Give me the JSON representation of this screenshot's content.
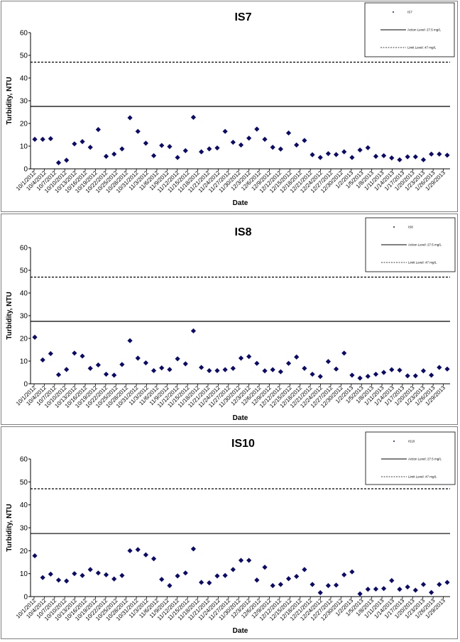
{
  "chart_data": [
    {
      "type": "scatter",
      "title": "IS7",
      "xlabel": "Date",
      "ylabel": "Turbidity, NTU",
      "ylim": [
        0,
        60
      ],
      "yticks": [
        "0",
        "10",
        "20",
        "30",
        "40",
        "50",
        "60"
      ],
      "xtick_labels": [
        "10/1/2012",
        "10/4/2012",
        "10/7/2012",
        "10/10/2012",
        "10/13/2012",
        "10/16/2012",
        "10/19/2012",
        "10/22/2012",
        "10/25/2012",
        "10/28/2012",
        "10/31/2012",
        "11/3/2012",
        "11/6/2012",
        "11/9/2012",
        "11/12/2012",
        "11/15/2012",
        "11/18/2012",
        "11/21/2012",
        "11/24/2012",
        "11/27/2012",
        "11/30/2012",
        "12/3/2012",
        "12/6/2012",
        "12/9/2012",
        "12/12/2012",
        "12/15/2012",
        "12/18/2012",
        "12/21/2012",
        "12/24/2012",
        "12/27/2012",
        "12/30/2012",
        "1/2/2013",
        "1/5/2013",
        "1/8/2013",
        "1/11/2013",
        "1/14/2013",
        "1/17/2013",
        "1/20/2013",
        "1/23/2013",
        "1/26/2013",
        "1/29/2013"
      ],
      "series": [
        {
          "name": "IS7",
          "values": [
            13,
            13,
            13.3,
            2.7,
            3.8,
            11,
            12,
            9.5,
            17.3,
            5.5,
            6.5,
            8.8,
            22.5,
            16.5,
            11.3,
            5.8,
            10.3,
            9.8,
            5,
            8,
            22.7,
            7.5,
            8.8,
            9.2,
            16.5,
            11.7,
            10.5,
            13.5,
            17.5,
            13,
            9.5,
            8.7,
            15.8,
            10.5,
            12.5,
            6.2,
            5,
            6.7,
            6.3,
            7.5,
            5,
            8.3,
            9.3,
            5.5,
            5.8,
            4.8,
            4,
            5.3,
            5.3,
            4,
            6.5,
            6.5,
            6
          ]
        }
      ],
      "reference_lines": [
        {
          "name": "Action Level: 27.5 mg/L",
          "value": 27.5,
          "style": "solid"
        },
        {
          "name": "Limit Level: 47 mg/L",
          "value": 47,
          "style": "dashed"
        }
      ],
      "legend": {
        "position": "top-right",
        "items": [
          "IS7",
          "Action Level: 27.5 mg/L",
          "Limit Level: 47 mg/L"
        ]
      }
    },
    {
      "type": "scatter",
      "title": "IS8",
      "xlabel": "Date",
      "ylabel": "Turbidity, NTU",
      "ylim": [
        0,
        60
      ],
      "yticks": [
        "0",
        "10",
        "20",
        "30",
        "40",
        "50",
        "60"
      ],
      "xtick_labels": [
        "10/1/2012",
        "10/4/2012",
        "10/7/2012",
        "10/10/2012",
        "10/13/2012",
        "10/16/2012",
        "10/19/2012",
        "10/22/2012",
        "10/25/2012",
        "10/28/2012",
        "10/31/2012",
        "11/3/2012",
        "11/6/2012",
        "11/9/2012",
        "11/12/2012",
        "11/15/2012",
        "11/18/2012",
        "11/21/2012",
        "11/24/2012",
        "11/27/2012",
        "11/30/2012",
        "12/3/2012",
        "12/6/2012",
        "12/9/2012",
        "12/12/2012",
        "12/15/2012",
        "12/18/2012",
        "12/21/2012",
        "12/24/2012",
        "12/27/2012",
        "12/30/2012",
        "1/2/2013",
        "1/5/2013",
        "1/8/2013",
        "1/11/2013",
        "1/14/2013",
        "1/17/2013",
        "1/20/2013",
        "1/23/2013",
        "1/26/2013",
        "1/29/2013"
      ],
      "series": [
        {
          "name": "IS8",
          "values": [
            20.5,
            10.5,
            13.3,
            4,
            6.3,
            13.5,
            12.2,
            6.8,
            8.3,
            4.2,
            3.8,
            8.5,
            19,
            11.3,
            9.2,
            5.8,
            7,
            6.3,
            11,
            8.8,
            23.3,
            7.2,
            5.8,
            5.8,
            6.2,
            6.8,
            11.3,
            12,
            9,
            5.7,
            6.2,
            5.3,
            9,
            11.8,
            6.8,
            4.2,
            3.2,
            9.8,
            6.5,
            13.5,
            3.8,
            2.5,
            3.3,
            4.2,
            5,
            6.2,
            6,
            3.5,
            3.5,
            5.7,
            3.8,
            7.2,
            6.5
          ]
        }
      ],
      "reference_lines": [
        {
          "name": "Action Level: 27.5 mg/L",
          "value": 27.5,
          "style": "solid"
        },
        {
          "name": "Limit Level: 47 mg/L",
          "value": 47,
          "style": "dashed"
        }
      ],
      "legend": {
        "position": "top-right",
        "items": [
          "IS8",
          "Action Level: 27.5 mg/L",
          "Limit Level: 47 mg/L"
        ]
      }
    },
    {
      "type": "scatter",
      "title": "IS10",
      "xlabel": "Date",
      "ylabel": "Turbidity, NTU",
      "ylim": [
        0,
        60
      ],
      "yticks": [
        "0",
        "10",
        "20",
        "30",
        "40",
        "50",
        "60"
      ],
      "xtick_labels": [
        "10/1/2012",
        "10/4/2012",
        "10/7/2012",
        "10/10/2012",
        "10/13/2012",
        "10/16/2012",
        "10/19/2012",
        "10/22/2012",
        "10/25/2012",
        "10/28/2012",
        "10/31/2012",
        "11/3/2012",
        "11/6/2012",
        "11/9/2012",
        "11/12/2012",
        "11/15/2012",
        "11/18/2012",
        "11/21/2012",
        "11/24/2012",
        "11/27/2012",
        "11/30/2012",
        "12/3/2012",
        "12/6/2012",
        "12/9/2012",
        "12/12/2012",
        "12/15/2012",
        "12/18/2012",
        "12/21/2012",
        "12/24/2012",
        "12/27/2012",
        "12/30/2012",
        "1/2/2013",
        "1/5/2013",
        "1/8/2013",
        "1/11/2013",
        "1/14/2013",
        "1/17/2013",
        "1/20/2013",
        "1/23/2013",
        "1/26/2013",
        "1/29/2013"
      ],
      "series": [
        {
          "name": "IS10",
          "values": [
            17.8,
            8.3,
            9.8,
            7.2,
            6.8,
            10,
            9.2,
            11.8,
            10.3,
            9.5,
            7.7,
            9.2,
            20,
            20.5,
            18.2,
            16.5,
            7.5,
            4.8,
            9,
            10.3,
            20.8,
            6.2,
            6,
            9,
            9.2,
            11.8,
            15.8,
            15.8,
            7.2,
            12.8,
            4.8,
            5.3,
            7.8,
            8.8,
            11.8,
            5.3,
            1.7,
            4.8,
            5,
            9.5,
            10.8,
            1.2,
            3.2,
            3.3,
            3.5,
            7,
            3.2,
            4.2,
            2.8,
            5.3,
            1.8,
            5.3,
            6.2
          ]
        }
      ],
      "reference_lines": [
        {
          "name": "Action Level: 27.5 mg/L",
          "value": 27.5,
          "style": "solid"
        },
        {
          "name": "Limit Level: 47 mg/L",
          "value": 47,
          "style": "dashed"
        }
      ],
      "legend": {
        "position": "top-right",
        "items": [
          "IS10",
          "Action Level: 27.5 mg/L",
          "Limit Level: 47 mg/L"
        ]
      }
    }
  ]
}
